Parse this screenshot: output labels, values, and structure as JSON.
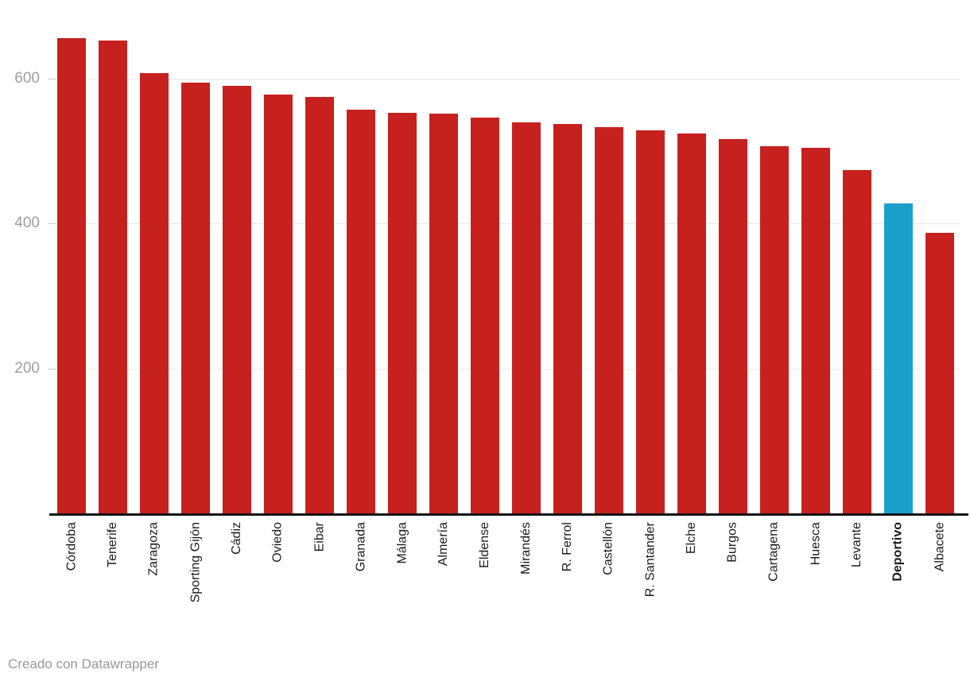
{
  "chart_data": {
    "type": "bar",
    "categories": [
      "Córdoba",
      "Tenerife",
      "Zaragoza",
      "Sporting Gijón",
      "Cádiz",
      "Oviedo",
      "Eibar",
      "Granada",
      "Málaga",
      "Almería",
      "Eldense",
      "Mirandés",
      "R. Ferrol",
      "Castellón",
      "R. Santander",
      "Elche",
      "Burgos",
      "Cartagena",
      "Huesca",
      "Levante",
      "Deportivo",
      "Albacete"
    ],
    "values": [
      655,
      652,
      607,
      594,
      590,
      578,
      575,
      557,
      553,
      552,
      546,
      540,
      537,
      533,
      528,
      524,
      517,
      507,
      505,
      474,
      428,
      387
    ],
    "highlight_category": "Deportivo",
    "title": "",
    "xlabel": "",
    "ylabel": "",
    "ylim": [
      0,
      708
    ],
    "yticks": [
      200,
      400,
      600
    ],
    "grid": true,
    "legend": "none",
    "bar_color": "#c6211e",
    "highlight_color": "#1aa0cd"
  },
  "colors": {
    "background": "#ffffff",
    "axis_line": "#131313",
    "gridline": "#e8e8e8",
    "tick_dash": "#c9c9c9",
    "y_tick_text": "#9e9e9e",
    "x_label_text": "#1a1a1a",
    "footer_text": "#999999"
  },
  "footer": {
    "credit": "Creado con Datawrapper"
  }
}
